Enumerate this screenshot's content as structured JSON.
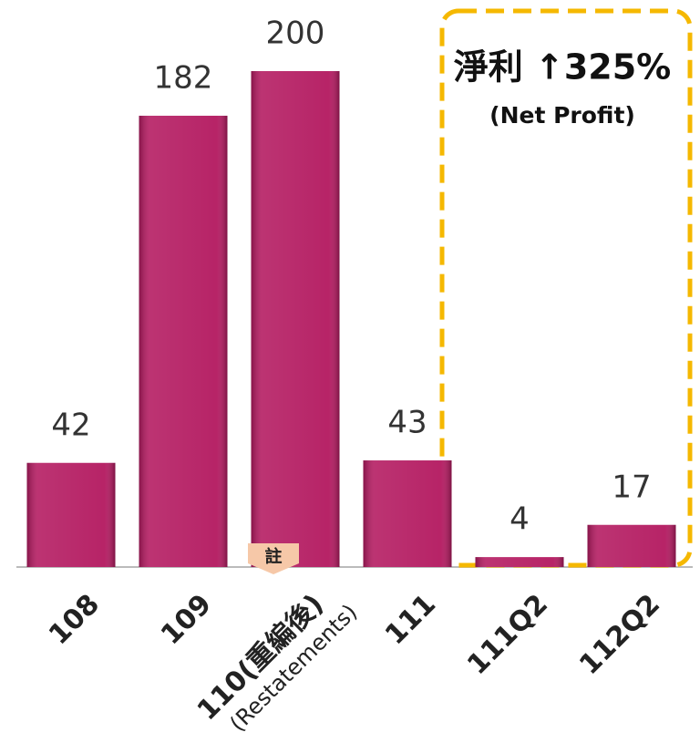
{
  "chart_data": {
    "type": "bar",
    "categories": [
      "108",
      "109",
      "110(重編後)\n(Restatements)",
      "111",
      "111Q2",
      "112Q2"
    ],
    "values": [
      42,
      182,
      200,
      43,
      4,
      17
    ],
    "color": "#b3185f",
    "ylim": [
      0,
      200
    ],
    "annotations": {
      "headline": "淨利 ↑325%",
      "subline": "(Net Profit)",
      "note_marker": "註"
    }
  }
}
